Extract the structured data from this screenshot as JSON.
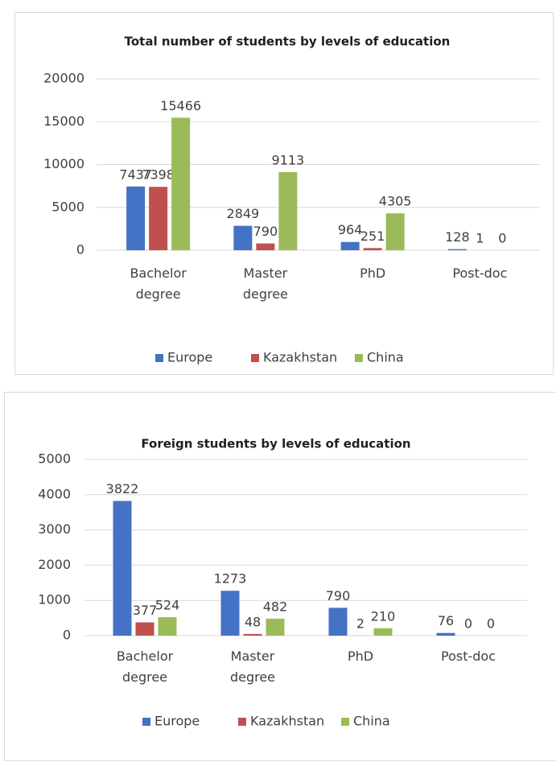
{
  "chart_data": [
    {
      "type": "bar",
      "title": "Total number of students by levels of education",
      "categories": [
        "Bachelor degree",
        "Master degree",
        "PhD",
        "Post-doc"
      ],
      "series": [
        {
          "name": "Europe",
          "color": "#4472c4",
          "values": [
            7437,
            2849,
            964,
            128
          ]
        },
        {
          "name": "Kazakhstan",
          "color": "#c0504d",
          "values": [
            7398,
            790,
            251,
            1
          ]
        },
        {
          "name": "China",
          "color": "#9bbb59",
          "values": [
            15466,
            9113,
            4305,
            0
          ]
        }
      ],
      "ylim": [
        0,
        20000
      ],
      "yticks": [
        0,
        5000,
        10000,
        15000,
        20000
      ],
      "grid": true,
      "legend": "bottom"
    },
    {
      "type": "bar",
      "title": "Foreign students by levels of education",
      "categories": [
        "Bachelor degree",
        "Master degree",
        "PhD",
        "Post-doc"
      ],
      "series": [
        {
          "name": "Europe",
          "color": "#4472c4",
          "values": [
            3822,
            1273,
            790,
            76
          ]
        },
        {
          "name": "Kazakhstan",
          "color": "#c0504d",
          "values": [
            377,
            48,
            2,
            0
          ]
        },
        {
          "name": "China",
          "color": "#9bbb59",
          "values": [
            524,
            482,
            210,
            0
          ]
        }
      ],
      "ylim": [
        0,
        5000
      ],
      "yticks": [
        0,
        1000,
        2000,
        3000,
        4000,
        5000
      ],
      "grid": true,
      "legend": "bottom"
    }
  ]
}
